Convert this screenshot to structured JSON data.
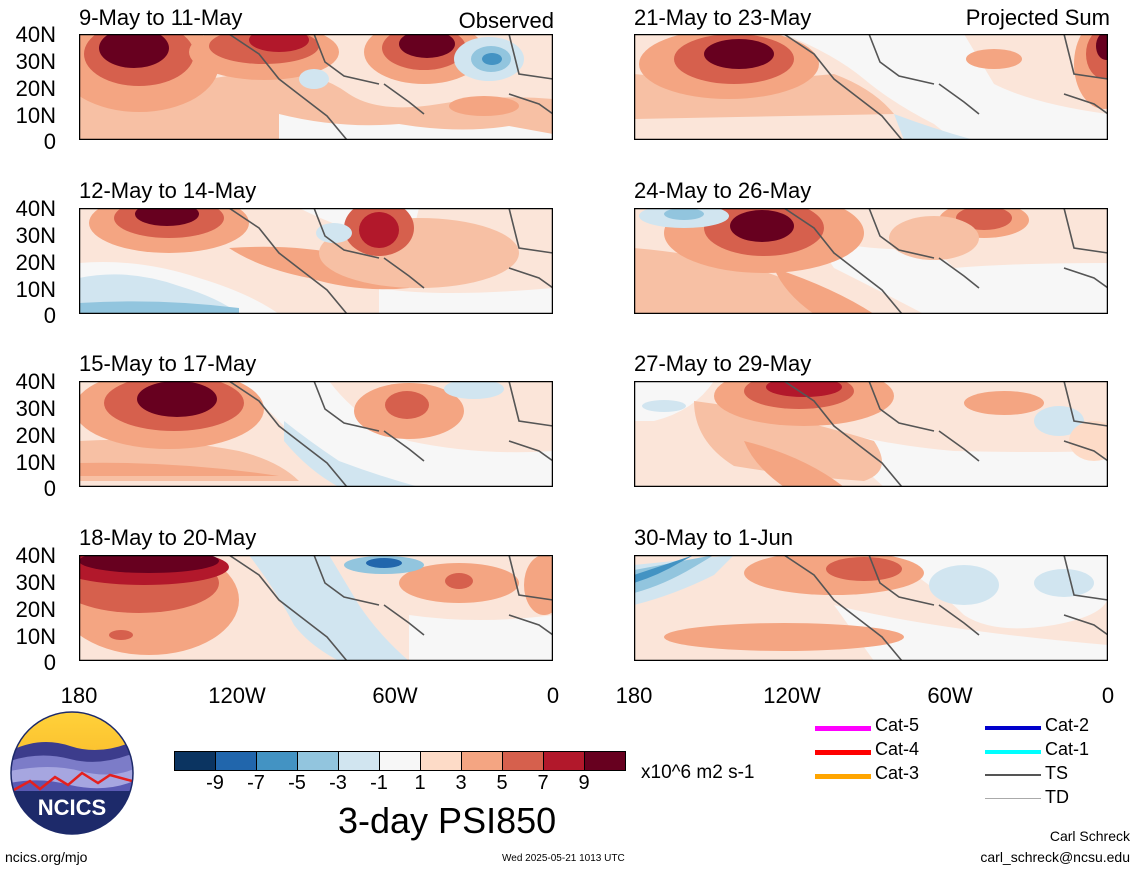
{
  "figure_title": "3-day PSI850",
  "units": "x10^6 m2 s-1",
  "y_tick_labels": [
    "40N",
    "30N",
    "20N",
    "10N",
    "0"
  ],
  "x_tick_labels": [
    "180",
    "120W",
    "60W",
    "0"
  ],
  "colorbar": {
    "tick_labels": [
      "-9",
      "-7",
      "-5",
      "-3",
      "-1",
      "1",
      "3",
      "5",
      "7",
      "9"
    ],
    "colors": [
      "#0b3461",
      "#2166ac",
      "#4393c3",
      "#92c5de",
      "#d1e5f0",
      "#f7f7f7",
      "#fddbc7",
      "#f4a582",
      "#d6604d",
      "#b2182b",
      "#67001f"
    ]
  },
  "panels": [
    {
      "title": "9-May to 11-May",
      "tag": "Observed"
    },
    {
      "title": "21-May to 23-May",
      "tag": "Projected Sum"
    },
    {
      "title": "12-May to 14-May",
      "tag": ""
    },
    {
      "title": "24-May to 26-May",
      "tag": ""
    },
    {
      "title": "15-May to 17-May",
      "tag": ""
    },
    {
      "title": "27-May to 29-May",
      "tag": ""
    },
    {
      "title": "18-May to 20-May",
      "tag": ""
    },
    {
      "title": "30-May to 1-Jun",
      "tag": ""
    }
  ],
  "storm_legend": [
    {
      "label": "Cat-5",
      "color": "#ff00ff"
    },
    {
      "label": "Cat-4",
      "color": "#ff0000"
    },
    {
      "label": "Cat-3",
      "color": "#ffa500"
    },
    {
      "label": "Cat-2",
      "color": "#0000cc"
    },
    {
      "label": "Cat-1",
      "color": "#00ffff"
    },
    {
      "label": "TS",
      "color": "#555555"
    },
    {
      "label": "TD",
      "color": "#aaaaaa"
    }
  ],
  "logo_text": "NCICS",
  "site": "ncics.org/mjo",
  "timestamp": "Wed 2025-05-21 1013 UTC",
  "author": "Carl Schreck",
  "email": "carl_schreck@ncsu.edu"
}
